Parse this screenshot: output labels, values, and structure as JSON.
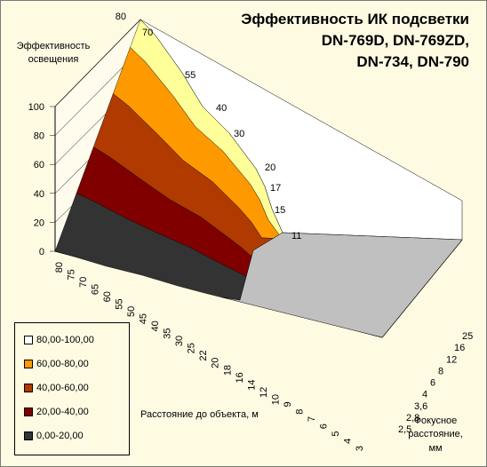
{
  "chart_data": {
    "type": "surface3d",
    "title": [
      "Эффективность ИК подсветки",
      "DN-769D, DN-769ZD,",
      "DN-734, DN-790"
    ],
    "zlabel": [
      "Эффективность",
      "освещения"
    ],
    "xlabel": "Расстояние до объекта, м",
    "ylabel": [
      "Фокусное",
      "расстояние,",
      "мм"
    ],
    "z_ticks": [
      "0",
      "20",
      "40",
      "60",
      "80",
      "100"
    ],
    "zlim": [
      0,
      100
    ],
    "x_ticks": [
      "80",
      "75",
      "70",
      "65",
      "60",
      "55",
      "50",
      "45",
      "40",
      "35",
      "30",
      "25",
      "22",
      "20",
      "18",
      "16",
      "14",
      "12",
      "10",
      "9",
      "8",
      "7",
      "6",
      "5",
      "4",
      "3"
    ],
    "y_ticks": [
      "2,5",
      "2,8",
      "3,6",
      "4",
      "6",
      "8",
      "12",
      "16",
      "25"
    ],
    "ridge_labels": [
      "80",
      "70",
      "55",
      "40",
      "30",
      "20",
      "17",
      "15",
      "11"
    ],
    "legend": [
      {
        "label": "80,00-100,00",
        "color": "#ffffff"
      },
      {
        "label": "60,00-80,00",
        "color": "#ff9900"
      },
      {
        "label": "40,00-60,00",
        "color": "#b03a00"
      },
      {
        "label": "20,00-40,00",
        "color": "#800000"
      },
      {
        "label": "0,00-20,00",
        "color": "#333333"
      }
    ],
    "ridge_distance_m": [
      80,
      70,
      55,
      40,
      30,
      20,
      17,
      15,
      11
    ],
    "focal_mm": [
      25,
      16,
      12,
      8,
      6,
      4,
      3.6,
      2.8,
      2.5
    ]
  }
}
